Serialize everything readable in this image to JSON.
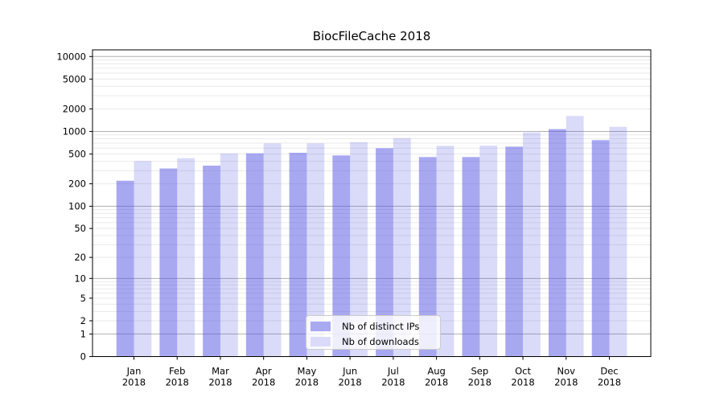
{
  "title": "BiocFileCache 2018",
  "chart_data": {
    "type": "bar",
    "title": "BiocFileCache 2018",
    "scale": "log1p",
    "categories": [
      "Jan",
      "Feb",
      "Mar",
      "Apr",
      "May",
      "Jun",
      "Jul",
      "Aug",
      "Sep",
      "Oct",
      "Nov",
      "Dec"
    ],
    "xlabel_year": "2018",
    "series": [
      {
        "name": "Nb of distinct IPs",
        "color": "rgba(82,82,227,0.5)",
        "color_over_white": "#a9a9f1",
        "values": [
          220,
          321,
          350,
          511,
          520,
          479,
          598,
          456,
          456,
          628,
          1075,
          766
        ]
      },
      {
        "name": "Nb of downloads",
        "color": "rgba(82,82,227,0.21)",
        "color_over_white": "#dbdbf9",
        "values": [
          403,
          440,
          511,
          694,
          694,
          722,
          817,
          644,
          648,
          971,
          1610,
          1155
        ]
      }
    ],
    "yticks": [
      0,
      1,
      2,
      5,
      10,
      20,
      50,
      100,
      200,
      500,
      1000,
      2000,
      5000,
      10000
    ],
    "ylim": [
      0,
      12265
    ],
    "grid": {
      "major_ticks": [
        1,
        10,
        100,
        1000,
        10000
      ],
      "major_color": "#b0b0b0",
      "minor_color": "#e9e9e9"
    },
    "axis_color": "#000000",
    "legend_position": "lower center",
    "legend_entries": [
      "Nb of distinct IPs",
      "Nb of downloads"
    ]
  }
}
